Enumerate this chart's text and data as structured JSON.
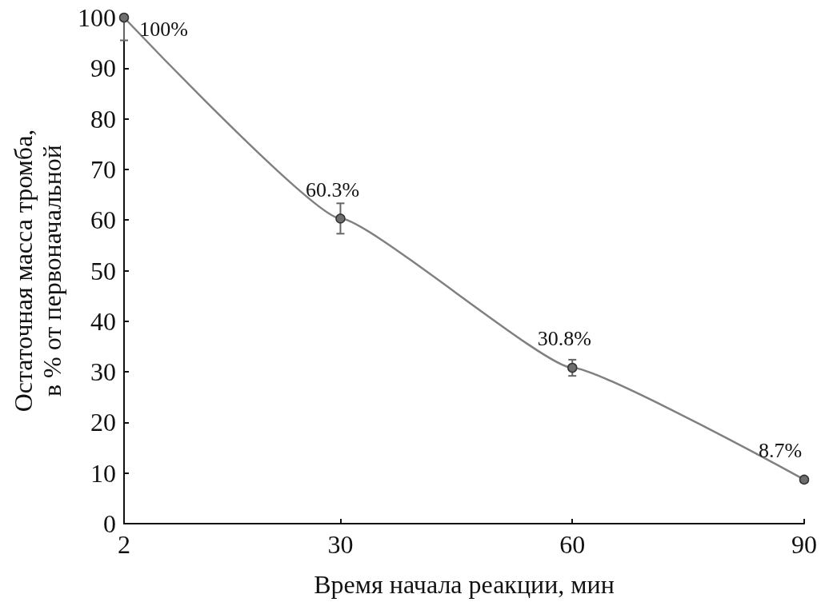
{
  "chart_data": {
    "type": "line",
    "xlabel": "Время начала реакции, мин",
    "ylabel": "Остаточная масса тромба,\nв % от первоначальной",
    "x": [
      2,
      30,
      60,
      90
    ],
    "series": [
      {
        "color": "#808080",
        "values": [
          100,
          60.3,
          30.8,
          8.7
        ],
        "value_labels": [
          "100%",
          "60.3%",
          "30.8%",
          "8.7%"
        ],
        "errors": [
          [
            95.5,
            100
          ],
          3,
          1.6,
          null
        ]
      }
    ],
    "xlim": [
      2,
      90
    ],
    "xticks": [
      2,
      30,
      60,
      90
    ],
    "ylim": [
      0,
      100
    ],
    "yticks": [
      0,
      10,
      20,
      30,
      40,
      50,
      60,
      70,
      80,
      90,
      100
    ],
    "grid": false,
    "marker": "circle",
    "line_style": "solid"
  }
}
